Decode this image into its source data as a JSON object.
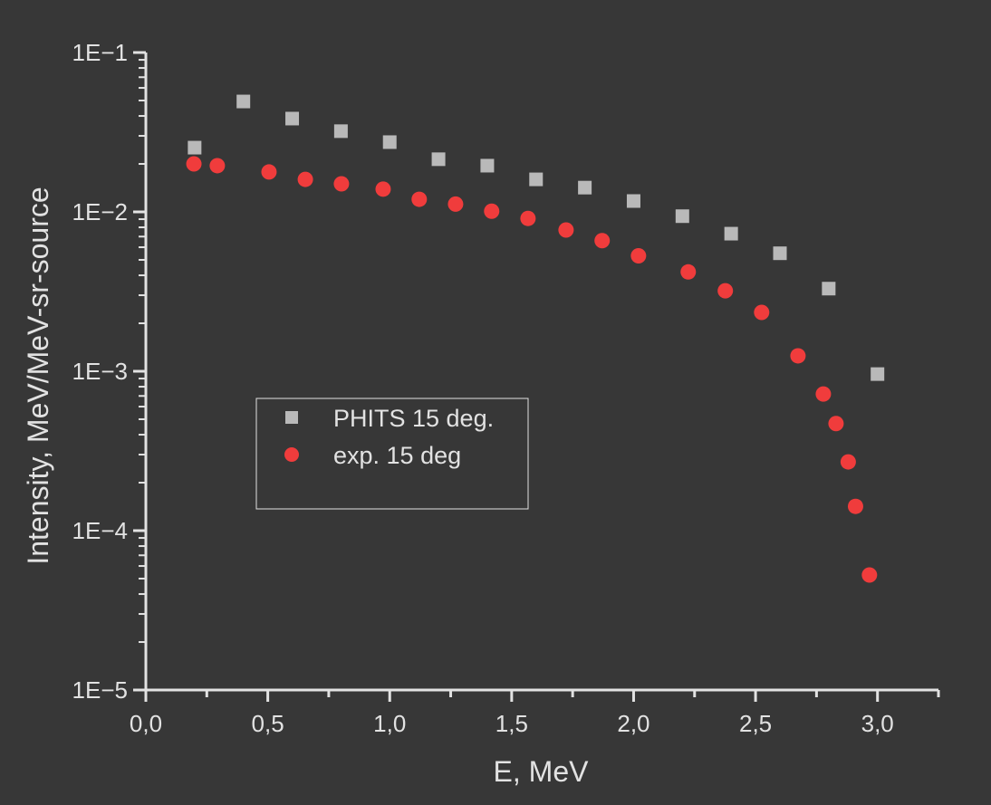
{
  "chart_data": {
    "type": "scatter",
    "title": "",
    "xlabel": "E, MeV",
    "ylabel": "Intensity, MeV/MeV-sr-source",
    "xlim": [
      0,
      3.25
    ],
    "ylim": [
      1e-05,
      0.1
    ],
    "yscale": "log",
    "grid": false,
    "legend_position": "center-left",
    "x_ticks": [
      "0,0",
      "0,5",
      "1,0",
      "1,5",
      "2,0",
      "2,5",
      "3,0"
    ],
    "x_tick_values": [
      0,
      0.5,
      1.0,
      1.5,
      2.0,
      2.5,
      3.0
    ],
    "y_ticks": [
      "1E−1",
      "1E−2",
      "1E−3",
      "1E−4",
      "1E−5"
    ],
    "y_tick_values": [
      0.1,
      0.01,
      0.001,
      0.0001,
      1e-05
    ],
    "background": "#373737",
    "series": [
      {
        "name": "PHITS 15 deg.",
        "marker": "square",
        "color": "#b9b9b9",
        "x": [
          0.2,
          0.4,
          0.6,
          0.8,
          1.0,
          1.2,
          1.4,
          1.6,
          1.8,
          2.0,
          2.2,
          2.4,
          2.6,
          2.8,
          3.0
        ],
        "y": [
          0.0253,
          0.0493,
          0.0385,
          0.0321,
          0.0274,
          0.0214,
          0.0195,
          0.016,
          0.0142,
          0.0117,
          0.0094,
          0.0073,
          0.0055,
          0.0033,
          0.00096
        ]
      },
      {
        "name": "exp. 15 deg",
        "marker": "circle",
        "color": "#f03c3c",
        "x": [
          0.197,
          0.293,
          0.505,
          0.654,
          0.802,
          0.973,
          1.121,
          1.27,
          1.418,
          1.567,
          1.723,
          1.871,
          2.02,
          2.224,
          2.376,
          2.525,
          2.674,
          2.778,
          2.83,
          2.88,
          2.91,
          2.967
        ],
        "y": [
          0.02,
          0.0195,
          0.0178,
          0.016,
          0.015,
          0.0139,
          0.012,
          0.0112,
          0.0101,
          0.0091,
          0.0077,
          0.0066,
          0.0053,
          0.0042,
          0.0032,
          0.00234,
          0.00125,
          0.00072,
          0.00047,
          0.00027,
          0.000142,
          5.27e-05
        ]
      }
    ]
  }
}
